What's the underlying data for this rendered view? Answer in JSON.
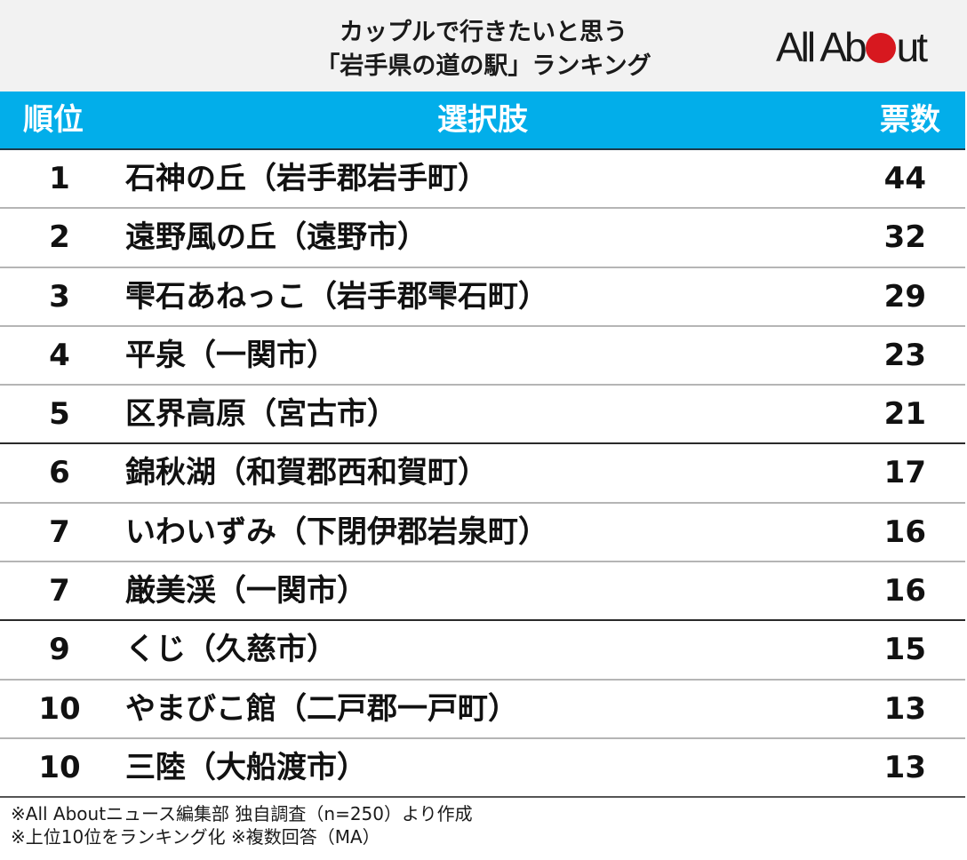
{
  "title": {
    "line1": "カップルで行きたいと思う",
    "line2": "「岩手県の道の駅」ランキング"
  },
  "logo": {
    "text_before": "All Ab",
    "text_after": "ut",
    "dot_color": "#d7181f"
  },
  "colors": {
    "header_bg": "#02aeea",
    "title_bg": "#f2f2f2",
    "header_text": "#ffffff"
  },
  "table": {
    "headers": {
      "rank": "順位",
      "choice": "選択肢",
      "votes": "票数"
    },
    "rows": [
      {
        "rank": "1",
        "name": "石神の丘（岩手郡岩手町）",
        "votes": "44"
      },
      {
        "rank": "2",
        "name": "遠野風の丘（遠野市）",
        "votes": "32"
      },
      {
        "rank": "3",
        "name": "雫石あねっこ（岩手郡雫石町）",
        "votes": "29"
      },
      {
        "rank": "4",
        "name": "平泉（一関市）",
        "votes": "23"
      },
      {
        "rank": "5",
        "name": "区界高原（宮古市）",
        "votes": "21"
      },
      {
        "rank": "6",
        "name": "錦秋湖（和賀郡西和賀町）",
        "votes": "17"
      },
      {
        "rank": "7",
        "name": "いわいずみ（下閉伊郡岩泉町）",
        "votes": "16"
      },
      {
        "rank": "7",
        "name": "厳美渓（一関市）",
        "votes": "16"
      },
      {
        "rank": "9",
        "name": "くじ（久慈市）",
        "votes": "15"
      },
      {
        "rank": "10",
        "name": "やまびこ館（二戸郡一戸町）",
        "votes": "13"
      },
      {
        "rank": "10",
        "name": "三陸（大船渡市）",
        "votes": "13"
      }
    ]
  },
  "footer": {
    "line1": "※All Aboutニュース編集部 独自調査（n=250）より作成",
    "line2": "※上位10位をランキング化 ※複数回答（MA）"
  },
  "chart_data": {
    "type": "table",
    "title": "カップルで行きたいと思う「岩手県の道の駅」ランキング",
    "columns": [
      "順位",
      "選択肢",
      "票数"
    ],
    "categories": [
      "石神の丘（岩手郡岩手町）",
      "遠野風の丘（遠野市）",
      "雫石あねっこ（岩手郡雫石町）",
      "平泉（一関市）",
      "区界高原（宮古市）",
      "錦秋湖（和賀郡西和賀町）",
      "いわいずみ（下閉伊郡岩泉町）",
      "厳美渓（一関市）",
      "くじ（久慈市）",
      "やまびこ館（二戸郡一戸町）",
      "三陸（大船渡市）"
    ],
    "ranks": [
      1,
      2,
      3,
      4,
      5,
      6,
      7,
      7,
      9,
      10,
      10
    ],
    "values": [
      44,
      32,
      29,
      23,
      21,
      17,
      16,
      16,
      15,
      13,
      13
    ],
    "notes": [
      "※All Aboutニュース編集部 独自調査（n=250）より作成",
      "※上位10位をランキング化 ※複数回答（MA）"
    ]
  }
}
